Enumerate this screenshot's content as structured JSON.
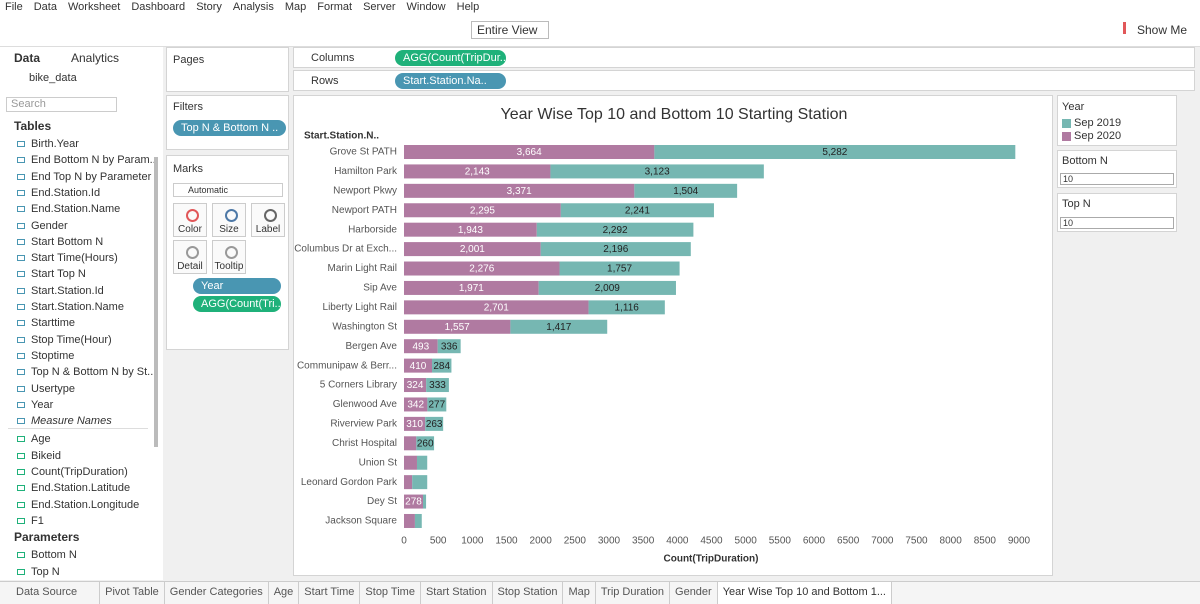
{
  "menu": [
    "File",
    "Data",
    "Worksheet",
    "Dashboard",
    "Story",
    "Analysis",
    "Map",
    "Format",
    "Server",
    "Window",
    "Help"
  ],
  "toolbar": {
    "fit": "Entire View",
    "show_me": "Show Me"
  },
  "data_pane": {
    "tabs": [
      "Data",
      "Analytics"
    ],
    "datasource": "bike_data",
    "search": "Search",
    "tables_heading": "Tables",
    "dimensions": [
      "Birth.Year",
      "End Bottom N by Param...",
      "End Top N by Parameter",
      "End.Station.Id",
      "End.Station.Name",
      "Gender",
      "Start Bottom N",
      "Start Time(Hours)",
      "Start Top N",
      "Start.Station.Id",
      "Start.Station.Name",
      "Starttime",
      "Stop Time(Hour)",
      "Stoptime",
      "Top N & Bottom N by St...",
      "Usertype",
      "Year",
      "Measure Names"
    ],
    "measures": [
      "Age",
      "Bikeid",
      "Count(TripDuration)",
      "End.Station.Latitude",
      "End.Station.Longitude",
      "F1"
    ],
    "parameters_heading": "Parameters",
    "parameters": [
      "Bottom N",
      "Top N"
    ]
  },
  "cards": {
    "pages": "Pages",
    "filters": "Filters",
    "filter_pill": "Top N & Bottom N ..",
    "marks": "Marks",
    "mark_type": "Automatic",
    "mark_buttons": [
      "Color",
      "Size",
      "Label",
      "Detail",
      "Tooltip"
    ],
    "mark_pills": [
      "Year",
      "AGG(Count(Tri..."
    ]
  },
  "shelves": {
    "columns_label": "Columns",
    "columns_pill": "AGG(Count(TripDur..",
    "rows_label": "Rows",
    "rows_pill": "Start.Station.Na.."
  },
  "side": {
    "legend_title": "Year",
    "bottom_n_label": "Bottom N",
    "bottom_n_value": "10",
    "top_n_label": "Top N",
    "top_n_value": "10"
  },
  "sheet_tabs": [
    "Data Source",
    "Pivot Table",
    "Gender Categories",
    "Age",
    "Start Time",
    "Stop Time",
    "Start Station",
    "Stop Station",
    "Map",
    "Trip Duration",
    "Gender",
    "Year Wise Top 10 and Bottom 1..."
  ],
  "chart_data": {
    "type": "stacked_barh",
    "title": "Year Wise Top 10 and Bottom 10 Starting Station",
    "y_label": "Start.Station.N..",
    "x_label": "Count(TripDuration)",
    "categories": [
      "Grove St PATH",
      "Hamilton Park",
      "Newport Pkwy",
      "Newport PATH",
      "Harborside",
      "Columbus Dr at Exch...",
      "Marin Light Rail",
      "Sip Ave",
      "Liberty Light Rail",
      "Washington St",
      "Bergen Ave",
      "Communipaw & Berr...",
      "5 Corners Library",
      "Glenwood Ave",
      "Riverview Park",
      "Christ Hospital",
      "Union St",
      "Leonard Gordon Park",
      "Dey St",
      "Jackson Square"
    ],
    "series": [
      {
        "name": "Sep 2019",
        "color": "#76b7b2",
        "label_color": "#222222",
        "values": [
          5282,
          3123,
          1504,
          2241,
          2292,
          2196,
          1757,
          2009,
          1116,
          1417,
          336,
          284,
          333,
          277,
          263,
          260,
          150,
          220,
          45,
          100
        ],
        "value_labels": [
          "5,282",
          "3,123",
          "1,504",
          "2,241",
          "2,292",
          "2,196",
          "1,757",
          "2,009",
          "1,116",
          "1,417",
          "336",
          "284",
          "333",
          "277",
          "263",
          "260",
          null,
          null,
          null,
          null
        ]
      },
      {
        "name": "Sep 2020",
        "color": "#b07aa1",
        "label_color": "#ffffff",
        "values": [
          3664,
          2143,
          3371,
          2295,
          1943,
          2001,
          2276,
          1971,
          2701,
          1557,
          493,
          410,
          324,
          342,
          310,
          180,
          190,
          120,
          278,
          160
        ],
        "value_labels": [
          "3,664",
          "2,143",
          "3,371",
          "2,295",
          "1,943",
          "2,001",
          "2,276",
          "1,971",
          "2,701",
          "1,557",
          "493",
          "410",
          "324",
          "342",
          "310",
          null,
          null,
          null,
          "278",
          null
        ]
      }
    ],
    "xlim": [
      0,
      9000
    ],
    "xticks": [
      0,
      500,
      1000,
      1500,
      2000,
      2500,
      3000,
      3500,
      4000,
      4500,
      5000,
      5500,
      6000,
      6500,
      7000,
      7500,
      8000,
      8500,
      9000
    ],
    "grid": false
  }
}
